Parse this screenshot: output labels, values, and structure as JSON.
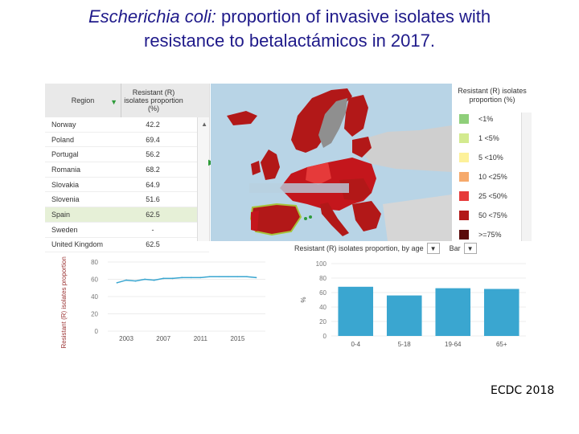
{
  "title": {
    "species": "Escherichia coli:",
    "line1_rest": " proportion of invasive isolates with",
    "line2": "resistance to betalactámicos in 2017."
  },
  "credit": "ECDC 2018",
  "table": {
    "col_region": "Region",
    "col_resistant": "Resistant (R) isolates proportion (%)",
    "rows": [
      {
        "region": "Norway",
        "value": "42.2"
      },
      {
        "region": "Poland",
        "value": "69.4"
      },
      {
        "region": "Portugal",
        "value": "56.2"
      },
      {
        "region": "Romania",
        "value": "68.2"
      },
      {
        "region": "Slovakia",
        "value": "64.9"
      },
      {
        "region": "Slovenia",
        "value": "51.6"
      },
      {
        "region": "Spain",
        "value": "62.5"
      },
      {
        "region": "Sweden",
        "value": "-"
      },
      {
        "region": "United Kingdom",
        "value": "62.5"
      }
    ],
    "selected_row": "Spain"
  },
  "legend": {
    "title": "Resistant (R) isolates proportion (%)",
    "items": [
      {
        "label": "<1%",
        "color": "#8fcf7a"
      },
      {
        "label": "1 <5%",
        "color": "#d3ea8f"
      },
      {
        "label": "5 <10%",
        "color": "#fdf19a"
      },
      {
        "label": "10 <25%",
        "color": "#f6a96b"
      },
      {
        "label": "25 <50%",
        "color": "#e63a3a"
      },
      {
        "label": "50 <75%",
        "color": "#b21818"
      },
      {
        "label": ">=75%",
        "color": "#5a0a0a"
      }
    ]
  },
  "bar_header": {
    "label": "Resistant (R) isolates proportion, by age",
    "chart_type": "Bar"
  },
  "chart_data": [
    {
      "type": "line",
      "title": "",
      "xlabel": "",
      "ylabel": "Resistant (R) isolates proportion (%)",
      "x": [
        2002,
        2003,
        2004,
        2005,
        2006,
        2007,
        2008,
        2009,
        2010,
        2011,
        2012,
        2013,
        2014,
        2015,
        2016,
        2017
      ],
      "series": [
        {
          "name": "Spain",
          "values": [
            56,
            59,
            58,
            60,
            59,
            61,
            61,
            62,
            62,
            62,
            63,
            63,
            63,
            63,
            63,
            62
          ]
        }
      ],
      "xticks": [
        "2003",
        "2007",
        "2011",
        "2015"
      ],
      "xtick_values": [
        2003,
        2007,
        2011,
        2015
      ],
      "yticks": [
        "0",
        "20",
        "40",
        "60",
        "80"
      ],
      "ylim": [
        0,
        80
      ],
      "xlim": [
        2001,
        2018
      ]
    },
    {
      "type": "bar",
      "title": "Resistant (R) isolates proportion, by age",
      "xlabel": "",
      "ylabel": "%",
      "categories": [
        "0-4",
        "5-18",
        "19-64",
        "65+"
      ],
      "values": [
        68,
        56,
        66,
        65
      ],
      "yticks": [
        "0",
        "20",
        "40",
        "60",
        "80",
        "100"
      ],
      "ylim": [
        0,
        100
      ],
      "color": "#3aa6d0"
    }
  ]
}
